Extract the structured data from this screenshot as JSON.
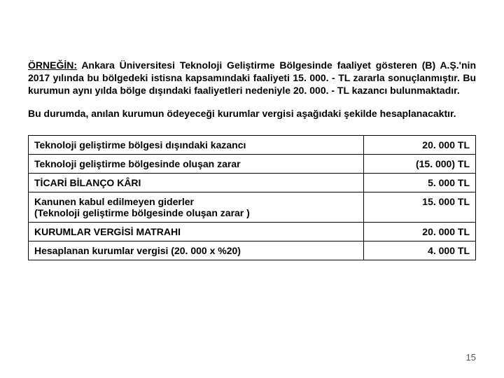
{
  "para1_lead": "ÖRNEĞİN:",
  "para1_rest": " Ankara Üniversitesi Teknoloji Geliştirme Bölgesinde faaliyet gösteren (B) A.Ş.'nin 2017 yılında bu bölgedeki istisna kapsamındaki faaliyeti 15. 000. - TL zararla sonuçlanmıştır. Bu kurumun aynı yılda bölge dışındaki faaliyetleri nedeniyle 20. 000. - TL kazancı bulunmaktadır.",
  "para2": "Bu durumda, anılan kurumun ödeyeceği kurumlar vergisi aşağıdaki şekilde hesaplanacaktır.",
  "rows": [
    {
      "label": "Teknoloji geliştirme bölgesi dışındaki kazancı",
      "value": "20. 000 TL"
    },
    {
      "label": "Teknoloji  geliştirme bölgesinde oluşan zarar",
      "value": "(15. 000) TL"
    },
    {
      "label": "TİCARİ BİLANÇO KÂRI",
      "value": "5. 000 TL"
    },
    {
      "label": "Kanunen kabul edilmeyen giderler\n(Teknoloji  geliştirme bölgesinde oluşan zarar )",
      "value": "15. 000 TL"
    },
    {
      "label": "KURUMLAR VERGİSİ MATRAHI",
      "value": "20. 000 TL"
    },
    {
      "label": "Hesaplanan kurumlar vergisi (20. 000 x %20)",
      "value": "4. 000 TL"
    }
  ],
  "page_number": "15"
}
